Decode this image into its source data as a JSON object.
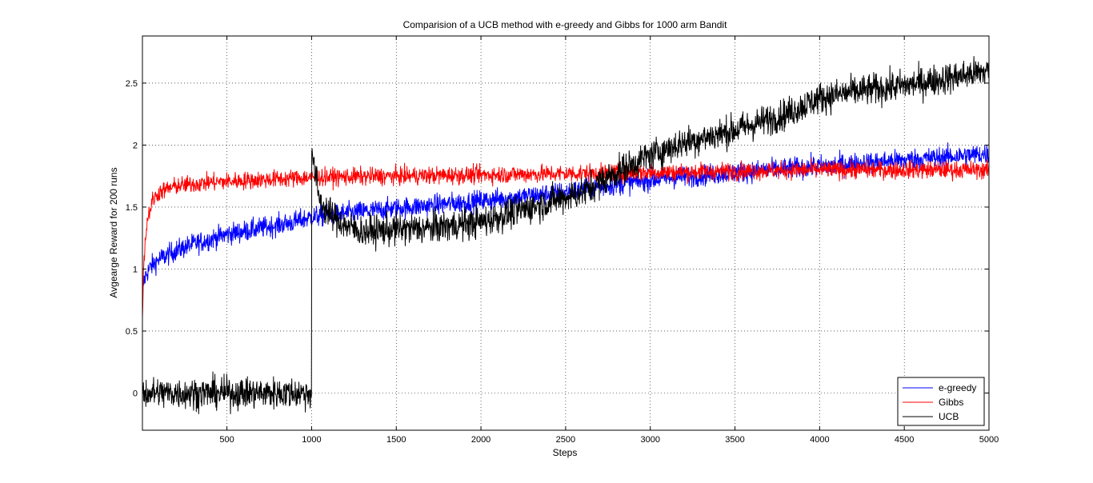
{
  "chart_data": {
    "type": "line",
    "title": "Comparision of a UCB method with e-greedy and Gibbs for 1000 arm Bandit",
    "xlabel": "Steps",
    "ylabel": "Avgearge Reward for 200 runs",
    "xlim": [
      1,
      5000
    ],
    "ylim": [
      -0.3,
      2.88
    ],
    "xticks": [
      500,
      1000,
      1500,
      2000,
      2500,
      3000,
      3500,
      4000,
      4500,
      5000
    ],
    "yticks": [
      0,
      0.5,
      1,
      1.5,
      2,
      2.5
    ],
    "grid": true,
    "legend_position": "bottom-right",
    "series": [
      {
        "name": "e-greedy",
        "color": "#0000ff",
        "noise": 0.06,
        "x": [
          1,
          20,
          50,
          100,
          200,
          300,
          500,
          700,
          900,
          1000,
          1200,
          1500,
          2000,
          2500,
          3000,
          3500,
          4000,
          4500,
          5000
        ],
        "y": [
          0.85,
          0.95,
          1.02,
          1.08,
          1.15,
          1.2,
          1.28,
          1.33,
          1.38,
          1.42,
          1.45,
          1.49,
          1.55,
          1.62,
          1.72,
          1.78,
          1.83,
          1.88,
          1.93
        ]
      },
      {
        "name": "Gibbs",
        "color": "#ff0000",
        "noise": 0.05,
        "x": [
          1,
          10,
          30,
          60,
          100,
          200,
          400,
          700,
          1000,
          1500,
          2000,
          2500,
          3000,
          3500,
          4000,
          4500,
          5000
        ],
        "y": [
          0.62,
          1.1,
          1.4,
          1.55,
          1.62,
          1.67,
          1.7,
          1.72,
          1.74,
          1.75,
          1.76,
          1.77,
          1.78,
          1.79,
          1.8,
          1.8,
          1.8
        ]
      },
      {
        "name": "UCB",
        "color": "#000000",
        "noise": 0.09,
        "x": [
          1,
          999,
          1000,
          1010,
          1050,
          1100,
          1200,
          1300,
          1500,
          1700,
          2000,
          2300,
          2600,
          2800,
          3000,
          3200,
          3500,
          3800,
          4000,
          4200,
          4500,
          4800,
          5000
        ],
        "y": [
          0.0,
          0.0,
          2.0,
          1.85,
          1.55,
          1.45,
          1.35,
          1.3,
          1.32,
          1.33,
          1.38,
          1.5,
          1.62,
          1.78,
          1.92,
          2.02,
          2.12,
          2.25,
          2.38,
          2.43,
          2.48,
          2.55,
          2.6
        ]
      }
    ]
  }
}
